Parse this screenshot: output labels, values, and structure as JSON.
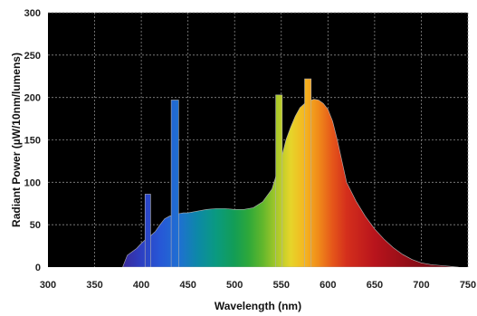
{
  "chart_data": {
    "type": "area",
    "title": "",
    "xlabel": "Wavelength (nm)",
    "ylabel": "Radiant Power (µW/10nm/lumens)",
    "xlim": [
      300,
      750
    ],
    "ylim": [
      0,
      300
    ],
    "x_ticks": [
      300,
      350,
      400,
      450,
      500,
      550,
      600,
      650,
      700,
      750
    ],
    "y_ticks": [
      0,
      50,
      100,
      150,
      200,
      250,
      300
    ],
    "grid": true,
    "background_color": "#000000",
    "grid_color": "#888888",
    "fill": "visible-spectrum gradient by wavelength",
    "series": [
      {
        "x": [
          380,
          385,
          390,
          395,
          400,
          405,
          410,
          415,
          420,
          425,
          430,
          435,
          440,
          445,
          450,
          460,
          470,
          480,
          490,
          500,
          510,
          520,
          530,
          540,
          545,
          550,
          555,
          560,
          565,
          570,
          575,
          580,
          585,
          590,
          595,
          600,
          605,
          610,
          615,
          620,
          630,
          640,
          650,
          660,
          670,
          680,
          690,
          700,
          710,
          720,
          730,
          740
        ],
        "values": [
          0,
          14,
          18,
          22,
          28,
          33,
          37,
          42,
          50,
          57,
          60,
          62,
          63,
          64,
          64,
          66,
          68,
          69,
          69,
          68,
          68,
          70,
          77,
          92,
          110,
          128,
          150,
          165,
          178,
          188,
          193,
          196,
          198,
          197,
          193,
          186,
          172,
          150,
          125,
          100,
          78,
          60,
          45,
          33,
          23,
          15,
          9,
          5,
          3,
          2,
          1,
          0
        ]
      },
      {
        "name": "",
        "type": "spectral-lines",
        "lines": [
          {
            "from": 404,
            "to": 410,
            "value": 86
          },
          {
            "from": 432,
            "to": 440,
            "value": 197
          },
          {
            "from": 544,
            "to": 551,
            "value": 203
          },
          {
            "from": 575,
            "to": 582,
            "value": 222
          }
        ]
      }
    ]
  }
}
